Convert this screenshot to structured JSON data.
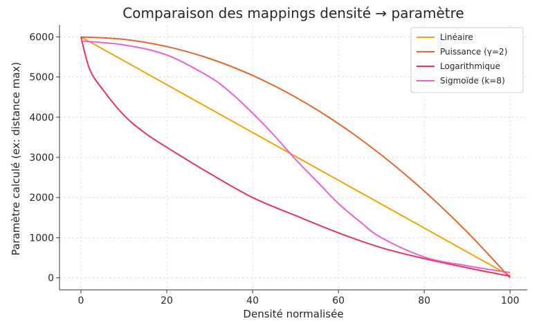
{
  "chart_data": {
    "type": "line",
    "title": "Comparaison des mappings densité → paramètre",
    "xlabel": "Densité normalisée",
    "ylabel": "Paramètre calculé (ex: distance max)",
    "xlim": [
      -5,
      104
    ],
    "ylim": [
      -300,
      6300
    ],
    "xticks": [
      0,
      20,
      40,
      60,
      80,
      100
    ],
    "yticks": [
      0,
      1000,
      2000,
      3000,
      4000,
      5000,
      6000
    ],
    "grid": true,
    "legend_position": "top-right",
    "series": [
      {
        "name": "Linéaire",
        "color": "#f5a300",
        "x": [
          0,
          100
        ],
        "y": [
          6000,
          50
        ]
      },
      {
        "name": "Puissance (γ=2)",
        "color": "#e8642a",
        "x": [
          0,
          10,
          20,
          30,
          40,
          50,
          60,
          70,
          80,
          90,
          100
        ],
        "y": [
          6000,
          5940,
          5760,
          5460,
          5040,
          4500,
          3840,
          3060,
          2160,
          1140,
          0
        ]
      },
      {
        "name": "Logarithmique",
        "color": "#ea3354",
        "x": [
          0,
          2,
          5,
          10,
          15,
          20,
          30,
          40,
          50,
          60,
          70,
          80,
          90,
          100
        ],
        "y": [
          6000,
          5200,
          4700,
          4050,
          3600,
          3250,
          2600,
          2000,
          1550,
          1120,
          750,
          480,
          250,
          40
        ]
      },
      {
        "name": "Sigmoïde (k=8)",
        "color": "#f25ed0",
        "x": [
          0,
          10,
          20,
          30,
          35,
          40,
          45,
          50,
          55,
          60,
          65,
          70,
          80,
          90,
          100
        ],
        "y": [
          5900,
          5800,
          5550,
          5000,
          4600,
          4100,
          3550,
          2950,
          2400,
          1850,
          1400,
          1000,
          520,
          300,
          130
        ]
      }
    ]
  }
}
